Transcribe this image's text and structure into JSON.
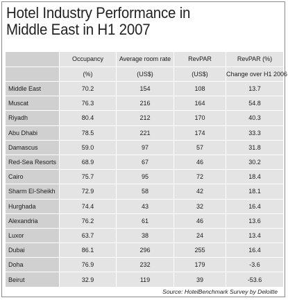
{
  "title": {
    "line1": "Hotel Industry Performance in",
    "line2": "Middle East in H1 2007"
  },
  "columns": [
    {
      "top": "",
      "bottom": ""
    },
    {
      "top": "Occupancy",
      "bottom": "(%)"
    },
    {
      "top": "Average room rate",
      "bottom": "(US$)"
    },
    {
      "top": "RevPAR",
      "bottom": "(US$)"
    },
    {
      "top": "RevPAR (%)",
      "bottom": "Change over H1 2006"
    }
  ],
  "rows": [
    {
      "region": "Middle East",
      "occupancy": "70.2",
      "avg_rate": "154",
      "revpar": "108",
      "change": "13.7"
    },
    {
      "region": "Muscat",
      "occupancy": "76.3",
      "avg_rate": "216",
      "revpar": "164",
      "change": "54.8"
    },
    {
      "region": "Riyadh",
      "occupancy": "80.4",
      "avg_rate": "212",
      "revpar": "170",
      "change": "40.3"
    },
    {
      "region": "Abu Dhabi",
      "occupancy": "78.5",
      "avg_rate": "221",
      "revpar": "174",
      "change": "33.3"
    },
    {
      "region": "Damascus",
      "occupancy": "59.0",
      "avg_rate": "97",
      "revpar": "57",
      "change": "31.8"
    },
    {
      "region": "Red-Sea Resorts",
      "occupancy": "68.9",
      "avg_rate": "67",
      "revpar": "46",
      "change": "30.2"
    },
    {
      "region": "Cairo",
      "occupancy": "75.7",
      "avg_rate": "95",
      "revpar": "72",
      "change": "18.4"
    },
    {
      "region": "Sharm El-Sheikh",
      "occupancy": "72.9",
      "avg_rate": "58",
      "revpar": "42",
      "change": "18.1"
    },
    {
      "region": "Hurghada",
      "occupancy": "74.4",
      "avg_rate": "43",
      "revpar": "32",
      "change": "16.4"
    },
    {
      "region": "Alexandria",
      "occupancy": "76.2",
      "avg_rate": "61",
      "revpar": "46",
      "change": "13.6"
    },
    {
      "region": "Luxor",
      "occupancy": "63.7",
      "avg_rate": "38",
      "revpar": "24",
      "change": "13.4"
    },
    {
      "region": "Dubai",
      "occupancy": "86.1",
      "avg_rate": "296",
      "revpar": "255",
      "change": "16.4"
    },
    {
      "region": "Doha",
      "occupancy": "76.9",
      "avg_rate": "232",
      "revpar": "179",
      "change": "-3.6"
    },
    {
      "region": "Beirut",
      "occupancy": "32.9",
      "avg_rate": "119",
      "revpar": "39",
      "change": "-53.6"
    }
  ],
  "source": "Source: HotelBenchmark Survey by Deloitte"
}
